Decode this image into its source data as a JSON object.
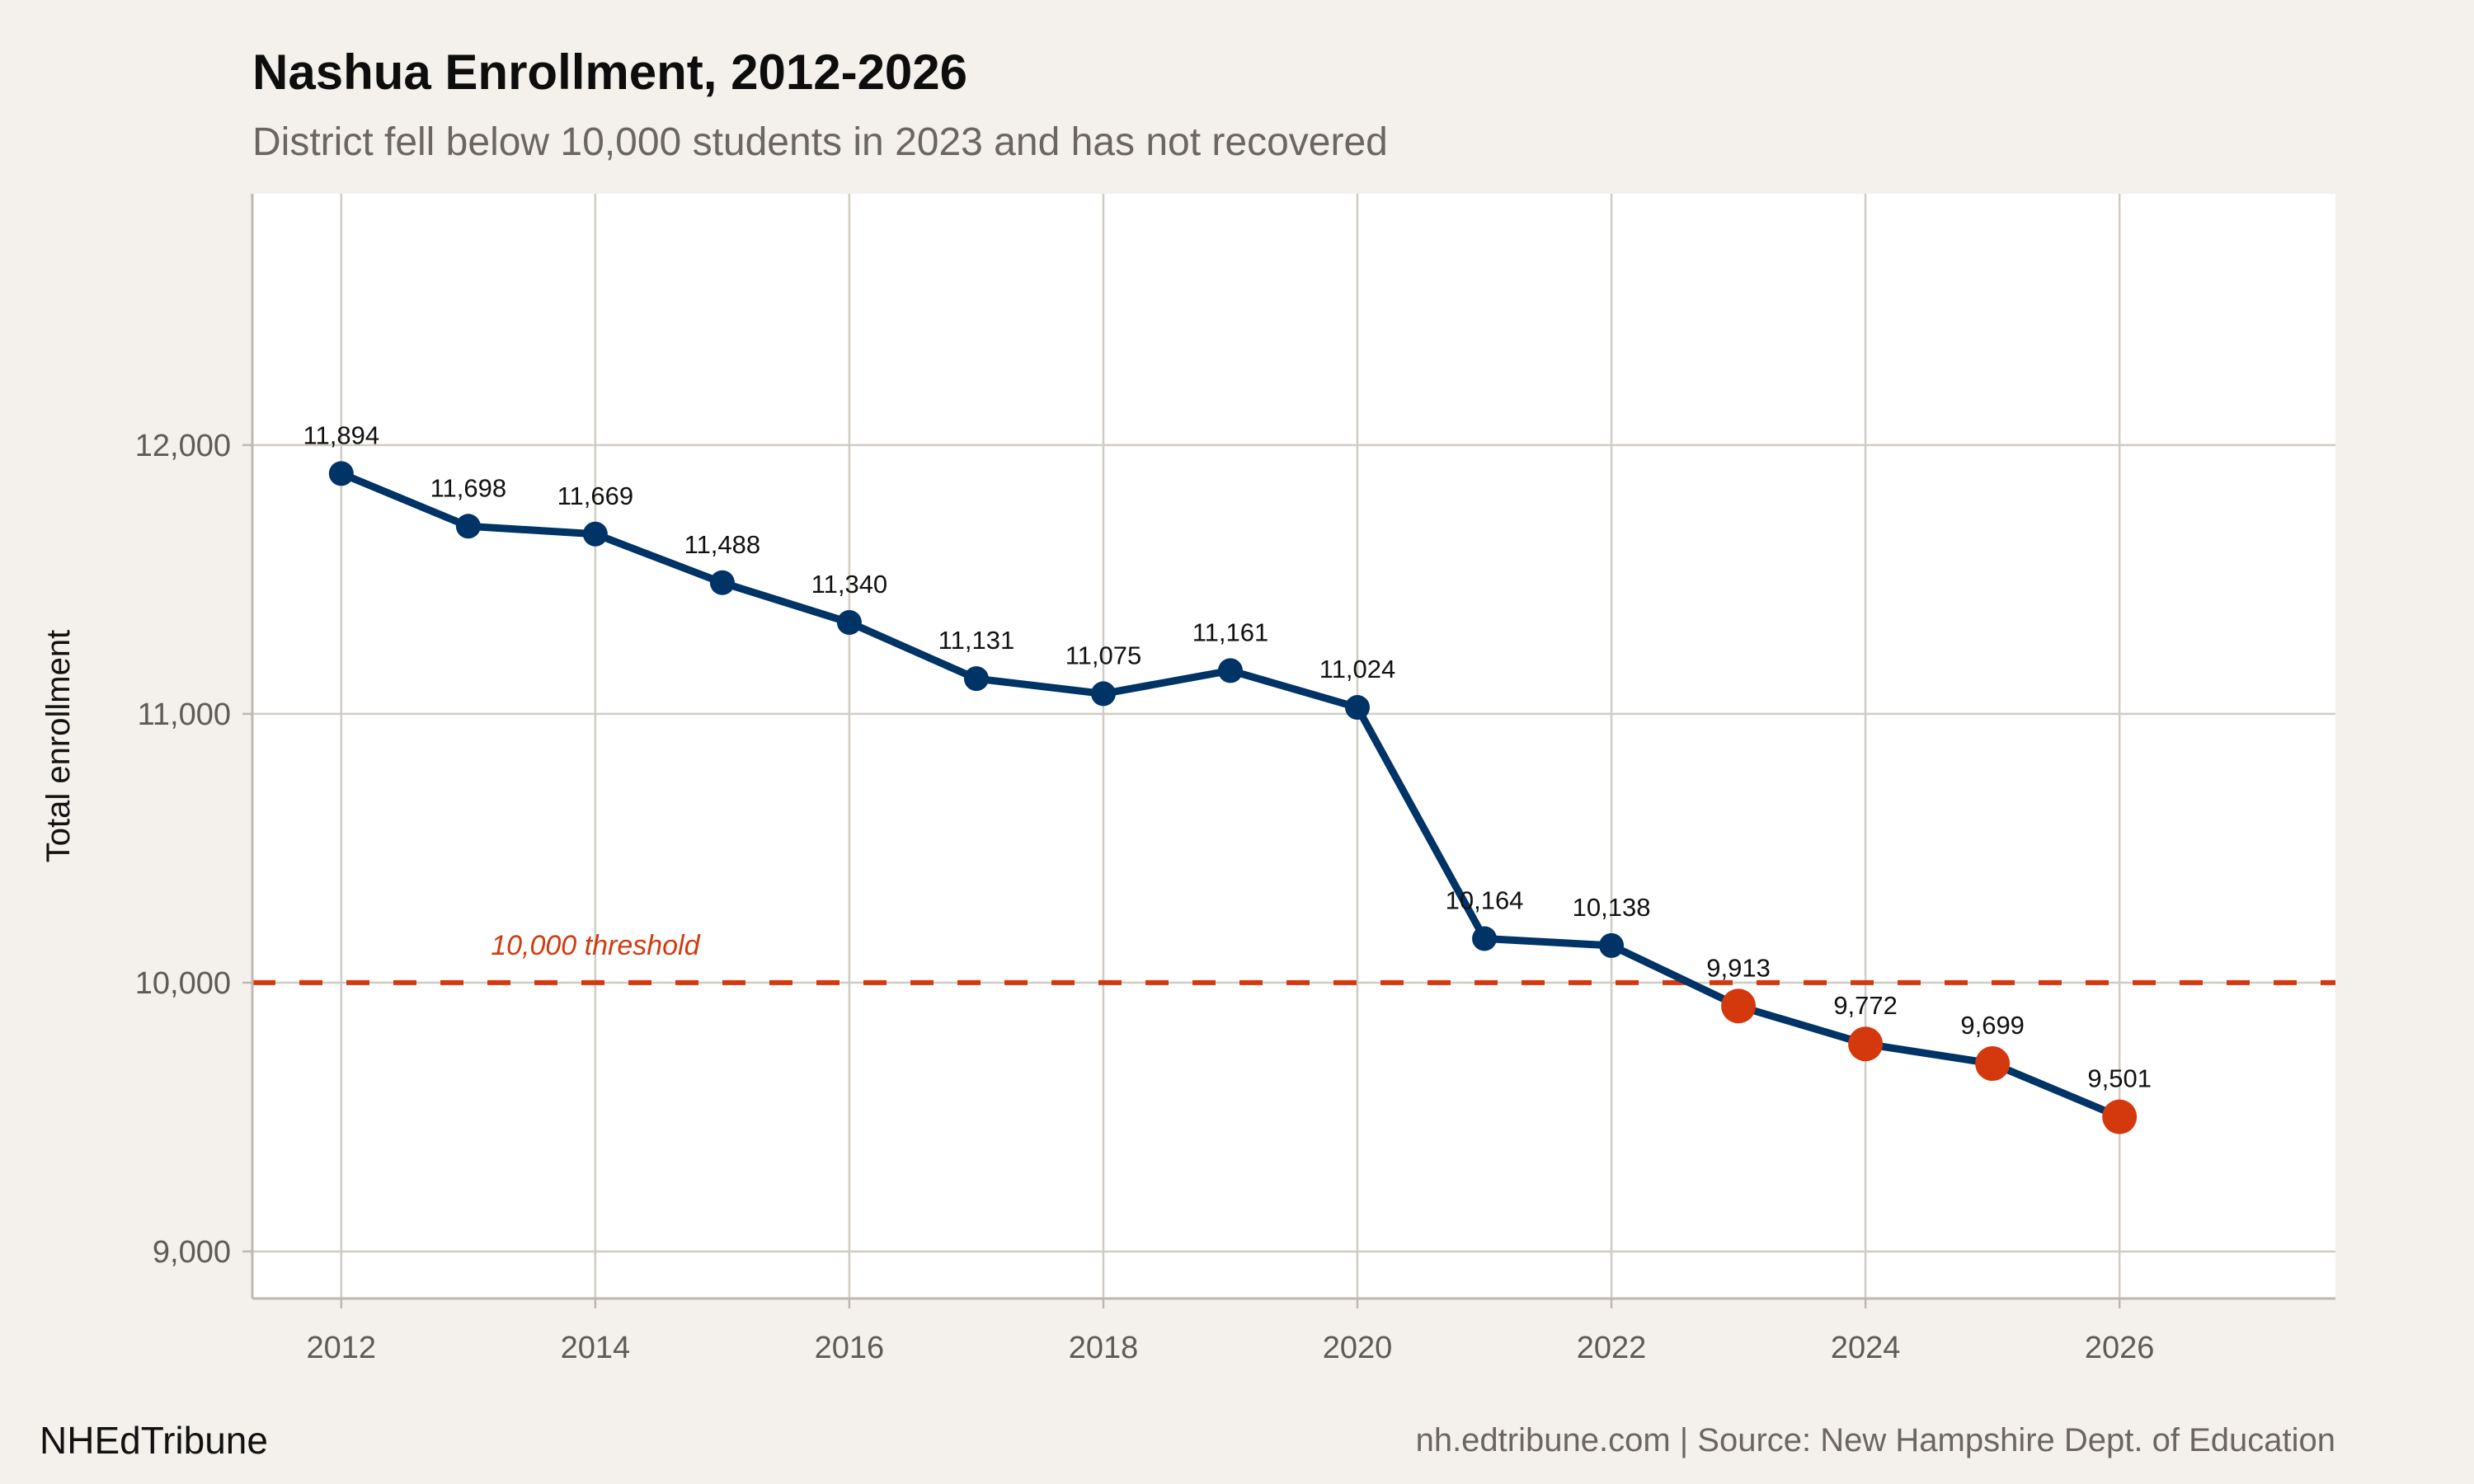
{
  "chart_data": {
    "type": "line",
    "title": "Nashua Enrollment, 2012-2026",
    "subtitle": "District fell below 10,000 students in 2023 and has not recovered",
    "xlabel": "",
    "ylabel": "Total enrollment",
    "xlim": [
      2011.3,
      2027.7
    ],
    "ylim": [
      8825,
      12935
    ],
    "x_ticks": [
      2012,
      2014,
      2016,
      2018,
      2020,
      2022,
      2024,
      2026
    ],
    "y_ticks": [
      9000,
      10000,
      11000,
      12000
    ],
    "y_tick_labels": [
      "9,000",
      "10,000",
      "11,000",
      "12,000"
    ],
    "grid": true,
    "x": [
      2012,
      2013,
      2014,
      2015,
      2016,
      2017,
      2018,
      2019,
      2020,
      2021,
      2022,
      2023,
      2024,
      2025,
      2026
    ],
    "values": [
      11894,
      11698,
      11669,
      11488,
      11340,
      11131,
      11075,
      11161,
      11024,
      10164,
      10138,
      9913,
      9772,
      9699,
      9501
    ],
    "data_labels": [
      "11,894",
      "11,698",
      "11,669",
      "11,488",
      "11,340",
      "11,131",
      "11,075",
      "11,161",
      "11,024",
      "10,164",
      "10,138",
      "9,913",
      "9,772",
      "9,699",
      "9,501"
    ],
    "threshold": {
      "value": 10000,
      "label": "10,000 threshold"
    },
    "colors": {
      "line": "#003366",
      "above_threshold_point": "#003366",
      "below_threshold_point": "#d4380d",
      "threshold": "#d4380d",
      "background": "#f4f1ec",
      "panel": "#ffffff",
      "grid": "#d0cbc4"
    }
  },
  "footer": {
    "brand": "NHEdTribune",
    "caption": "nh.edtribune.com | Source: New Hampshire Dept. of Education"
  }
}
